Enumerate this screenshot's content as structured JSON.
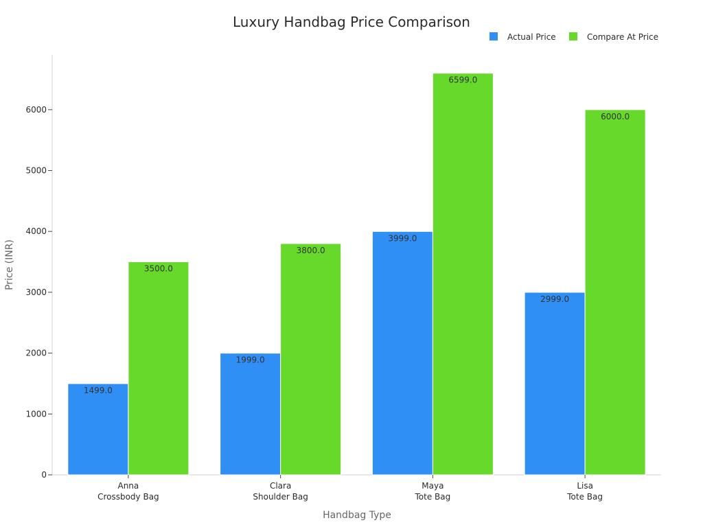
{
  "chart_data": {
    "type": "bar",
    "title": "Luxury Handbag Price Comparison",
    "xlabel": "Handbag Type",
    "ylabel": "Price (INR)",
    "ylim": [
      0,
      6900
    ],
    "yticks": [
      0,
      1000,
      2000,
      3000,
      4000,
      5000,
      6000
    ],
    "categories": [
      [
        "Anna",
        "Crossbody Bag"
      ],
      [
        "Clara",
        "Shoulder Bag"
      ],
      [
        "Maya",
        "Tote Bag"
      ],
      [
        "Lisa",
        "Tote Bag"
      ]
    ],
    "series": [
      {
        "name": "Actual Price",
        "color": "#2f8ff5",
        "values": [
          1499.0,
          1999.0,
          3999.0,
          2999.0
        ],
        "labels": [
          "1499.0",
          "1999.0",
          "3999.0",
          "2999.0"
        ]
      },
      {
        "name": "Compare At Price",
        "color": "#66d92a",
        "values": [
          3500.0,
          3800.0,
          6599.0,
          6000.0
        ],
        "labels": [
          "3500.0",
          "3800.0",
          "6599.0",
          "6000.0"
        ]
      }
    ],
    "legend_position": "top-right",
    "grid": false
  }
}
